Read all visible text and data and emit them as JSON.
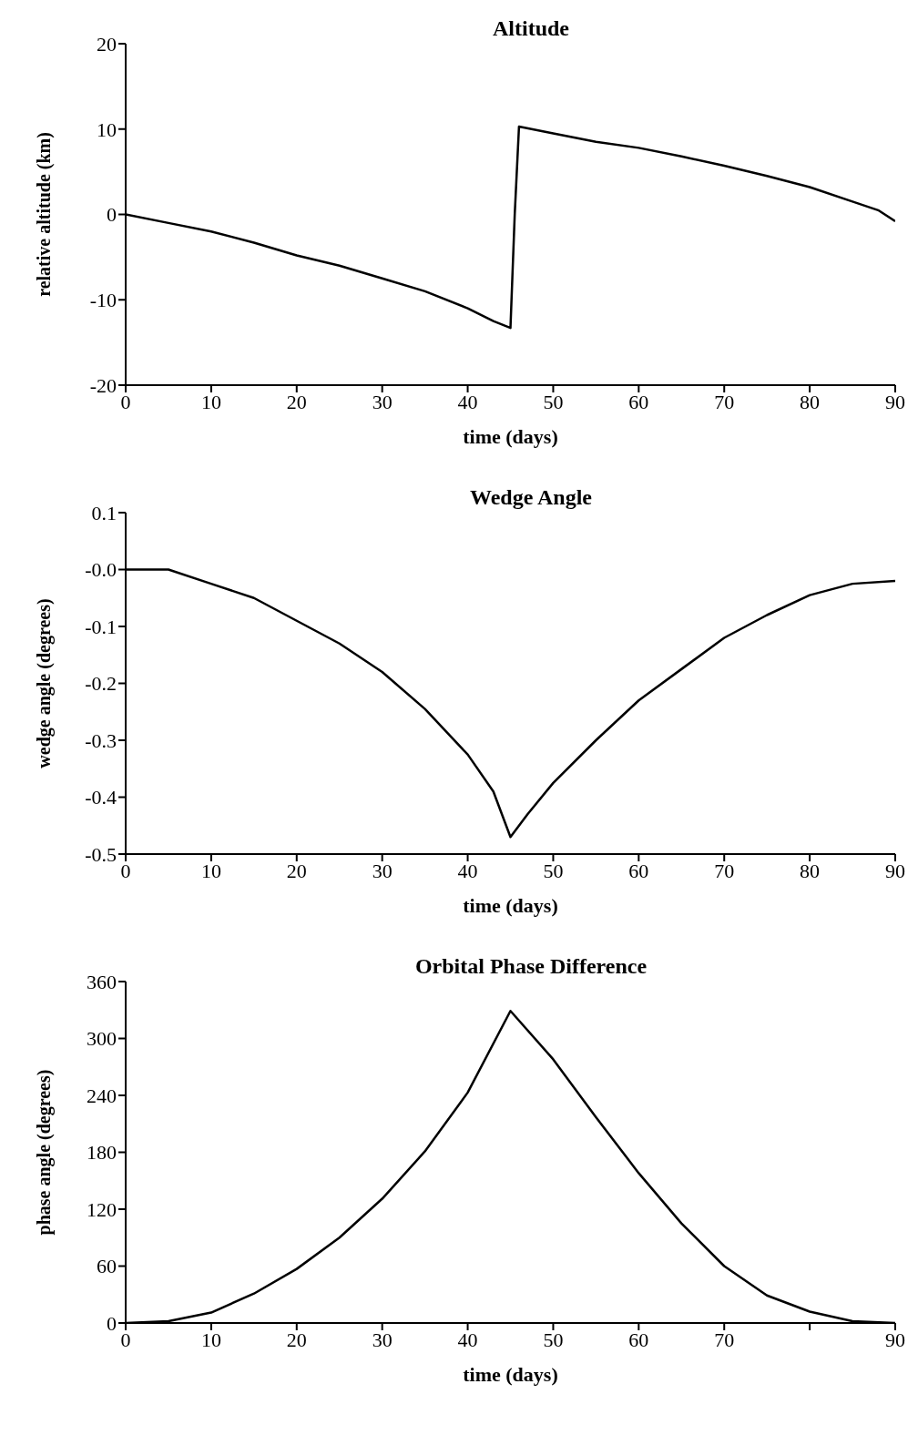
{
  "chart_data": [
    {
      "type": "line",
      "title": "Altitude",
      "xlabel": "time  (days)",
      "ylabel": "relative altitude (km)",
      "xlim": [
        0,
        90
      ],
      "ylim": [
        -20,
        20
      ],
      "xticks": [
        0,
        10,
        20,
        30,
        40,
        50,
        60,
        70,
        80,
        90
      ],
      "yticks": [
        -20,
        -10,
        0,
        10,
        20
      ],
      "marker": "none",
      "line_style": "solid",
      "series": [
        {
          "color": "#000000",
          "x": [
            0,
            5,
            10,
            15,
            20,
            25,
            30,
            35,
            40,
            43,
            45,
            45.5,
            46,
            50,
            55,
            60,
            65,
            70,
            75,
            80,
            85,
            88,
            90
          ],
          "values": [
            0,
            -1,
            -2,
            -3.3,
            -4.8,
            -6,
            -7.5,
            -9,
            -11,
            -12.5,
            -13.3,
            0,
            10.3,
            9.5,
            8.5,
            7.8,
            6.8,
            5.7,
            4.5,
            3.2,
            1.5,
            0.5,
            -0.8
          ]
        }
      ]
    },
    {
      "type": "line",
      "title": "Wedge Angle",
      "xlabel": "time  (days)",
      "ylabel": "wedge angle (degrees)",
      "xlim": [
        0,
        90
      ],
      "ylim": [
        -0.5,
        0.1
      ],
      "xticks": [
        0,
        10,
        20,
        30,
        40,
        50,
        60,
        70,
        80,
        90
      ],
      "yticks": [
        -0.5,
        -0.4,
        -0.3,
        -0.2,
        -0.1,
        {
          "value": 0,
          "label": "-0.0"
        },
        0.1
      ],
      "marker": "none",
      "line_style": "solid",
      "series": [
        {
          "color": "#000000",
          "x": [
            0,
            5,
            10,
            15,
            20,
            25,
            30,
            35,
            40,
            43,
            45,
            47,
            50,
            55,
            60,
            65,
            70,
            75,
            80,
            85,
            90
          ],
          "values": [
            0,
            0,
            -0.025,
            -0.05,
            -0.09,
            -0.13,
            -0.18,
            -0.245,
            -0.325,
            -0.39,
            -0.47,
            -0.43,
            -0.375,
            -0.3,
            -0.23,
            -0.175,
            -0.12,
            -0.08,
            -0.045,
            -0.025,
            -0.02
          ]
        }
      ]
    },
    {
      "type": "line",
      "title": "Orbital Phase Difference",
      "xlabel": "time  (days)",
      "ylabel": "phase angle (degrees)",
      "xlim": [
        0,
        90
      ],
      "ylim": [
        0,
        360
      ],
      "xticks": [
        0,
        10,
        20,
        30,
        40,
        50,
        60,
        70,
        {
          "value": 80,
          "label": null
        },
        90
      ],
      "yticks": [
        0,
        60,
        120,
        180,
        240,
        300,
        360
      ],
      "marker": "none",
      "line_style": "solid",
      "series": [
        {
          "color": "#000000",
          "x": [
            0,
            5,
            10,
            15,
            20,
            25,
            30,
            35,
            40,
            45,
            50,
            55,
            60,
            65,
            70,
            75,
            80,
            85,
            90
          ],
          "values": [
            0,
            2,
            11,
            31,
            57,
            90,
            131,
            181,
            243,
            329,
            278,
            217,
            158,
            105,
            60,
            29,
            12,
            2,
            0
          ]
        }
      ]
    }
  ]
}
